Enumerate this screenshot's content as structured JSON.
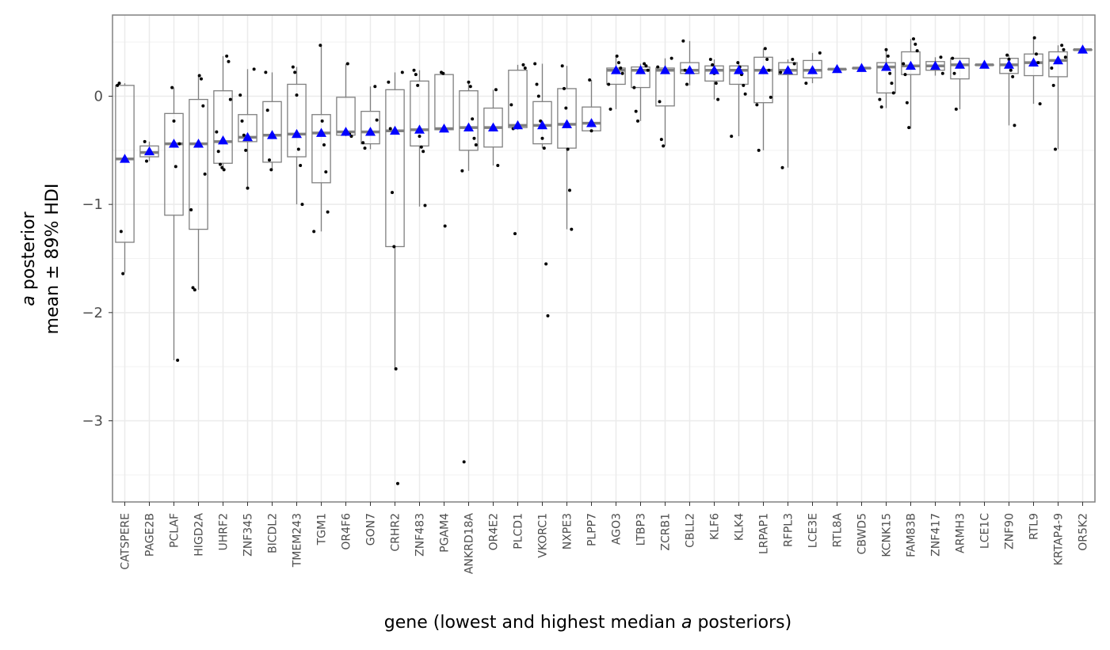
{
  "chart_data": {
    "type": "box",
    "xlabel": {
      "prefix": "gene (lowest and highest median ",
      "italic": "a",
      "suffix": " posteriors)"
    },
    "ylabel": {
      "line1_italic": "a",
      "line1_rest": " posterior",
      "line2": "mean ± 89% HDI"
    },
    "ylim": [
      -3.75,
      0.75
    ],
    "yticks": [
      0,
      -1,
      -2,
      -3
    ],
    "ytick_labels": [
      "0",
      "−1",
      "−2",
      "−3"
    ],
    "grid": true,
    "colors": {
      "background": "#ffffff",
      "panel_border": "#808080",
      "grid_major": "#ebebeb",
      "grid_minor": "#f2f2f2",
      "box_outline": "#808080",
      "median_line": "#808080",
      "point": "#000000",
      "mean_marker": "#0000ff"
    },
    "genes": [
      {
        "name": "CATSPERE",
        "q1": -1.35,
        "median": -0.58,
        "q3": 0.1,
        "wlo": -1.63,
        "whi": 0.12,
        "mean": -0.58,
        "points": [
          0.1,
          0.12,
          -1.25,
          -1.64,
          -0.58
        ]
      },
      {
        "name": "PAGE2B",
        "q1": -0.56,
        "median": -0.52,
        "q3": -0.46,
        "wlo": -0.6,
        "whi": -0.42,
        "mean": -0.51,
        "points": [
          -0.42,
          -0.6,
          -0.52
        ]
      },
      {
        "name": "PCLAF",
        "q1": -1.1,
        "median": -0.44,
        "q3": -0.16,
        "wlo": -2.44,
        "whi": 0.08,
        "mean": -0.44,
        "points": [
          0.08,
          -0.23,
          -0.65,
          -2.44,
          -0.44
        ]
      },
      {
        "name": "HIGD2A",
        "q1": -1.23,
        "median": -0.44,
        "q3": -0.03,
        "wlo": -1.79,
        "whi": 0.19,
        "mean": -0.44,
        "points": [
          0.19,
          0.16,
          -0.09,
          -0.72,
          -1.05,
          -1.77,
          -1.79
        ]
      },
      {
        "name": "UHRF2",
        "q1": -0.62,
        "median": -0.42,
        "q3": 0.05,
        "wlo": -0.68,
        "whi": 0.37,
        "mean": -0.41,
        "points": [
          0.37,
          0.32,
          -0.03,
          -0.33,
          -0.51,
          -0.63,
          -0.66,
          -0.68
        ]
      },
      {
        "name": "ZNF345",
        "q1": -0.42,
        "median": -0.38,
        "q3": -0.17,
        "wlo": -0.85,
        "whi": 0.25,
        "mean": -0.38,
        "points": [
          0.25,
          0.01,
          -0.23,
          -0.36,
          -0.5,
          -0.85
        ]
      },
      {
        "name": "BICDL2",
        "q1": -0.61,
        "median": -0.36,
        "q3": -0.05,
        "wlo": -0.68,
        "whi": 0.22,
        "mean": -0.36,
        "points": [
          0.22,
          -0.13,
          -0.59,
          -0.68
        ]
      },
      {
        "name": "TMEM243",
        "q1": -0.56,
        "median": -0.35,
        "q3": 0.11,
        "wlo": -1.0,
        "whi": 0.27,
        "mean": -0.35,
        "points": [
          0.27,
          0.22,
          0.01,
          -0.49,
          -0.64,
          -1.0
        ]
      },
      {
        "name": "TGM1",
        "q1": -0.8,
        "median": -0.34,
        "q3": -0.17,
        "wlo": -1.25,
        "whi": 0.47,
        "mean": -0.34,
        "points": [
          0.47,
          -0.23,
          -0.45,
          -0.7,
          -1.07,
          -1.25
        ]
      },
      {
        "name": "OR4F6",
        "q1": -0.36,
        "median": -0.33,
        "q3": -0.01,
        "wlo": -0.37,
        "whi": 0.3,
        "mean": -0.33,
        "points": [
          0.3,
          -0.35,
          -0.37
        ]
      },
      {
        "name": "GON7",
        "q1": -0.44,
        "median": -0.33,
        "q3": -0.14,
        "wlo": -0.49,
        "whi": 0.09,
        "mean": -0.33,
        "points": [
          0.09,
          -0.22,
          -0.43,
          -0.48
        ]
      },
      {
        "name": "CRHR2",
        "q1": -1.39,
        "median": -0.32,
        "q3": 0.06,
        "wlo": -2.53,
        "whi": 0.22,
        "mean": -0.32,
        "points": [
          0.22,
          0.13,
          -0.3,
          -0.89,
          -1.39,
          -2.52,
          -3.58
        ]
      },
      {
        "name": "ZNF483",
        "q1": -0.46,
        "median": -0.31,
        "q3": 0.14,
        "wlo": -1.02,
        "whi": 0.24,
        "mean": -0.31,
        "points": [
          0.24,
          0.2,
          0.1,
          -0.37,
          -0.47,
          -0.51,
          -1.01
        ]
      },
      {
        "name": "PGAM4",
        "q1": -0.31,
        "median": -0.3,
        "q3": 0.2,
        "wlo": -0.31,
        "whi": 0.22,
        "mean": -0.3,
        "points": [
          0.22,
          0.21,
          -1.2
        ]
      },
      {
        "name": "ANKRD18A",
        "q1": -0.5,
        "median": -0.29,
        "q3": 0.05,
        "wlo": -0.69,
        "whi": 0.13,
        "mean": -0.29,
        "points": [
          0.13,
          0.09,
          -0.21,
          -0.39,
          -0.45,
          -0.69,
          -3.38
        ]
      },
      {
        "name": "OR4E2",
        "q1": -0.47,
        "median": -0.29,
        "q3": -0.11,
        "wlo": -0.64,
        "whi": 0.06,
        "mean": -0.29,
        "points": [
          0.06,
          -0.64
        ]
      },
      {
        "name": "PLCD1",
        "q1": -0.29,
        "median": -0.27,
        "q3": 0.24,
        "wlo": -0.31,
        "whi": 0.29,
        "mean": -0.27,
        "points": [
          0.29,
          0.26,
          -0.08,
          -0.3,
          -1.27
        ]
      },
      {
        "name": "VKORC1",
        "q1": -0.44,
        "median": -0.27,
        "q3": -0.05,
        "wlo": -0.48,
        "whi": 0.3,
        "mean": -0.27,
        "points": [
          0.3,
          0.11,
          0.0,
          -0.23,
          -0.39,
          -0.48,
          -1.55,
          -2.03
        ]
      },
      {
        "name": "NXPE3",
        "q1": -0.48,
        "median": -0.26,
        "q3": 0.07,
        "wlo": -1.23,
        "whi": 0.28,
        "mean": -0.26,
        "points": [
          0.28,
          0.07,
          -0.11,
          -0.49,
          -0.87,
          -1.23
        ]
      },
      {
        "name": "PLPP7",
        "q1": -0.32,
        "median": -0.25,
        "q3": -0.1,
        "wlo": -0.32,
        "whi": 0.15,
        "mean": -0.25,
        "points": [
          0.15,
          -0.32
        ]
      },
      {
        "name": "AGO3",
        "q1": 0.11,
        "median": 0.24,
        "q3": 0.26,
        "wlo": -0.12,
        "whi": 0.37,
        "mean": 0.24,
        "points": [
          0.37,
          0.31,
          0.26,
          0.21,
          0.11,
          -0.12
        ]
      },
      {
        "name": "LTBP3",
        "q1": 0.08,
        "median": 0.24,
        "q3": 0.27,
        "wlo": -0.23,
        "whi": 0.3,
        "mean": 0.24,
        "points": [
          0.3,
          0.28,
          0.24,
          0.08,
          -0.14,
          -0.23
        ]
      },
      {
        "name": "ZCRB1",
        "q1": -0.09,
        "median": 0.24,
        "q3": 0.26,
        "wlo": -0.46,
        "whi": 0.35,
        "mean": 0.24,
        "points": [
          0.35,
          0.27,
          -0.05,
          -0.4,
          -0.46
        ]
      },
      {
        "name": "CBLL2",
        "q1": 0.21,
        "median": 0.24,
        "q3": 0.31,
        "wlo": 0.1,
        "whi": 0.51,
        "mean": 0.24,
        "points": [
          0.51,
          0.24,
          0.11
        ]
      },
      {
        "name": "KLF6",
        "q1": 0.14,
        "median": 0.24,
        "q3": 0.28,
        "wlo": -0.03,
        "whi": 0.34,
        "mean": 0.24,
        "points": [
          0.34,
          0.29,
          0.21,
          0.12,
          -0.03
        ]
      },
      {
        "name": "KLK4",
        "q1": 0.11,
        "median": 0.24,
        "q3": 0.28,
        "wlo": -0.37,
        "whi": 0.31,
        "mean": 0.24,
        "points": [
          0.31,
          0.27,
          0.2,
          0.1,
          0.02,
          -0.37
        ]
      },
      {
        "name": "LRPAP1",
        "q1": -0.06,
        "median": 0.24,
        "q3": 0.36,
        "wlo": -0.5,
        "whi": 0.44,
        "mean": 0.24,
        "points": [
          0.44,
          0.34,
          0.24,
          -0.01,
          -0.08,
          -0.5
        ]
      },
      {
        "name": "RFPL3",
        "q1": 0.2,
        "median": 0.24,
        "q3": 0.31,
        "wlo": -0.66,
        "whi": 0.34,
        "mean": 0.24,
        "points": [
          0.34,
          0.3,
          0.22,
          -0.66
        ]
      },
      {
        "name": "LCE3E",
        "q1": 0.17,
        "median": 0.24,
        "q3": 0.33,
        "wlo": 0.12,
        "whi": 0.4,
        "mean": 0.24,
        "points": [
          0.4,
          0.12
        ]
      },
      {
        "name": "RTL8A",
        "q1": 0.25,
        "median": 0.25,
        "q3": 0.25,
        "wlo": 0.25,
        "whi": 0.25,
        "mean": 0.25,
        "points": []
      },
      {
        "name": "CBWD5",
        "q1": 0.26,
        "median": 0.26,
        "q3": 0.26,
        "wlo": 0.26,
        "whi": 0.26,
        "mean": 0.26,
        "points": []
      },
      {
        "name": "KCNK15",
        "q1": 0.03,
        "median": 0.27,
        "q3": 0.31,
        "wlo": -0.11,
        "whi": 0.43,
        "mean": 0.27,
        "points": [
          0.43,
          0.37,
          0.21,
          0.12,
          0.03,
          -0.03,
          -0.1
        ]
      },
      {
        "name": "FAM83B",
        "q1": 0.2,
        "median": 0.28,
        "q3": 0.41,
        "wlo": -0.3,
        "whi": 0.53,
        "mean": 0.28,
        "points": [
          0.53,
          0.48,
          0.42,
          0.3,
          0.2,
          -0.06,
          -0.29
        ]
      },
      {
        "name": "ZNF417",
        "q1": 0.24,
        "median": 0.28,
        "q3": 0.32,
        "wlo": 0.19,
        "whi": 0.36,
        "mean": 0.28,
        "points": [
          0.36,
          0.21
        ]
      },
      {
        "name": "ARMH3",
        "q1": 0.16,
        "median": 0.29,
        "q3": 0.35,
        "wlo": -0.12,
        "whi": 0.35,
        "mean": 0.29,
        "points": [
          0.35,
          0.21,
          -0.12
        ]
      },
      {
        "name": "LCE1C",
        "q1": 0.29,
        "median": 0.29,
        "q3": 0.29,
        "wlo": 0.29,
        "whi": 0.29,
        "mean": 0.29,
        "points": []
      },
      {
        "name": "ZNF90",
        "q1": 0.21,
        "median": 0.29,
        "q3": 0.35,
        "wlo": -0.27,
        "whi": 0.38,
        "mean": 0.29,
        "points": [
          0.38,
          0.34,
          0.24,
          0.18,
          -0.27
        ]
      },
      {
        "name": "RTL9",
        "q1": 0.19,
        "median": 0.31,
        "q3": 0.39,
        "wlo": -0.07,
        "whi": 0.54,
        "mean": 0.31,
        "points": [
          0.54,
          0.39,
          0.31,
          -0.07
        ]
      },
      {
        "name": "KRTAP4-9",
        "q1": 0.18,
        "median": 0.33,
        "q3": 0.41,
        "wlo": -0.49,
        "whi": 0.47,
        "mean": 0.33,
        "points": [
          0.47,
          0.43,
          0.36,
          0.26,
          0.1,
          -0.49
        ]
      },
      {
        "name": "OR5K2",
        "q1": 0.43,
        "median": 0.43,
        "q3": 0.43,
        "wlo": 0.43,
        "whi": 0.43,
        "mean": 0.43,
        "points": []
      }
    ]
  }
}
